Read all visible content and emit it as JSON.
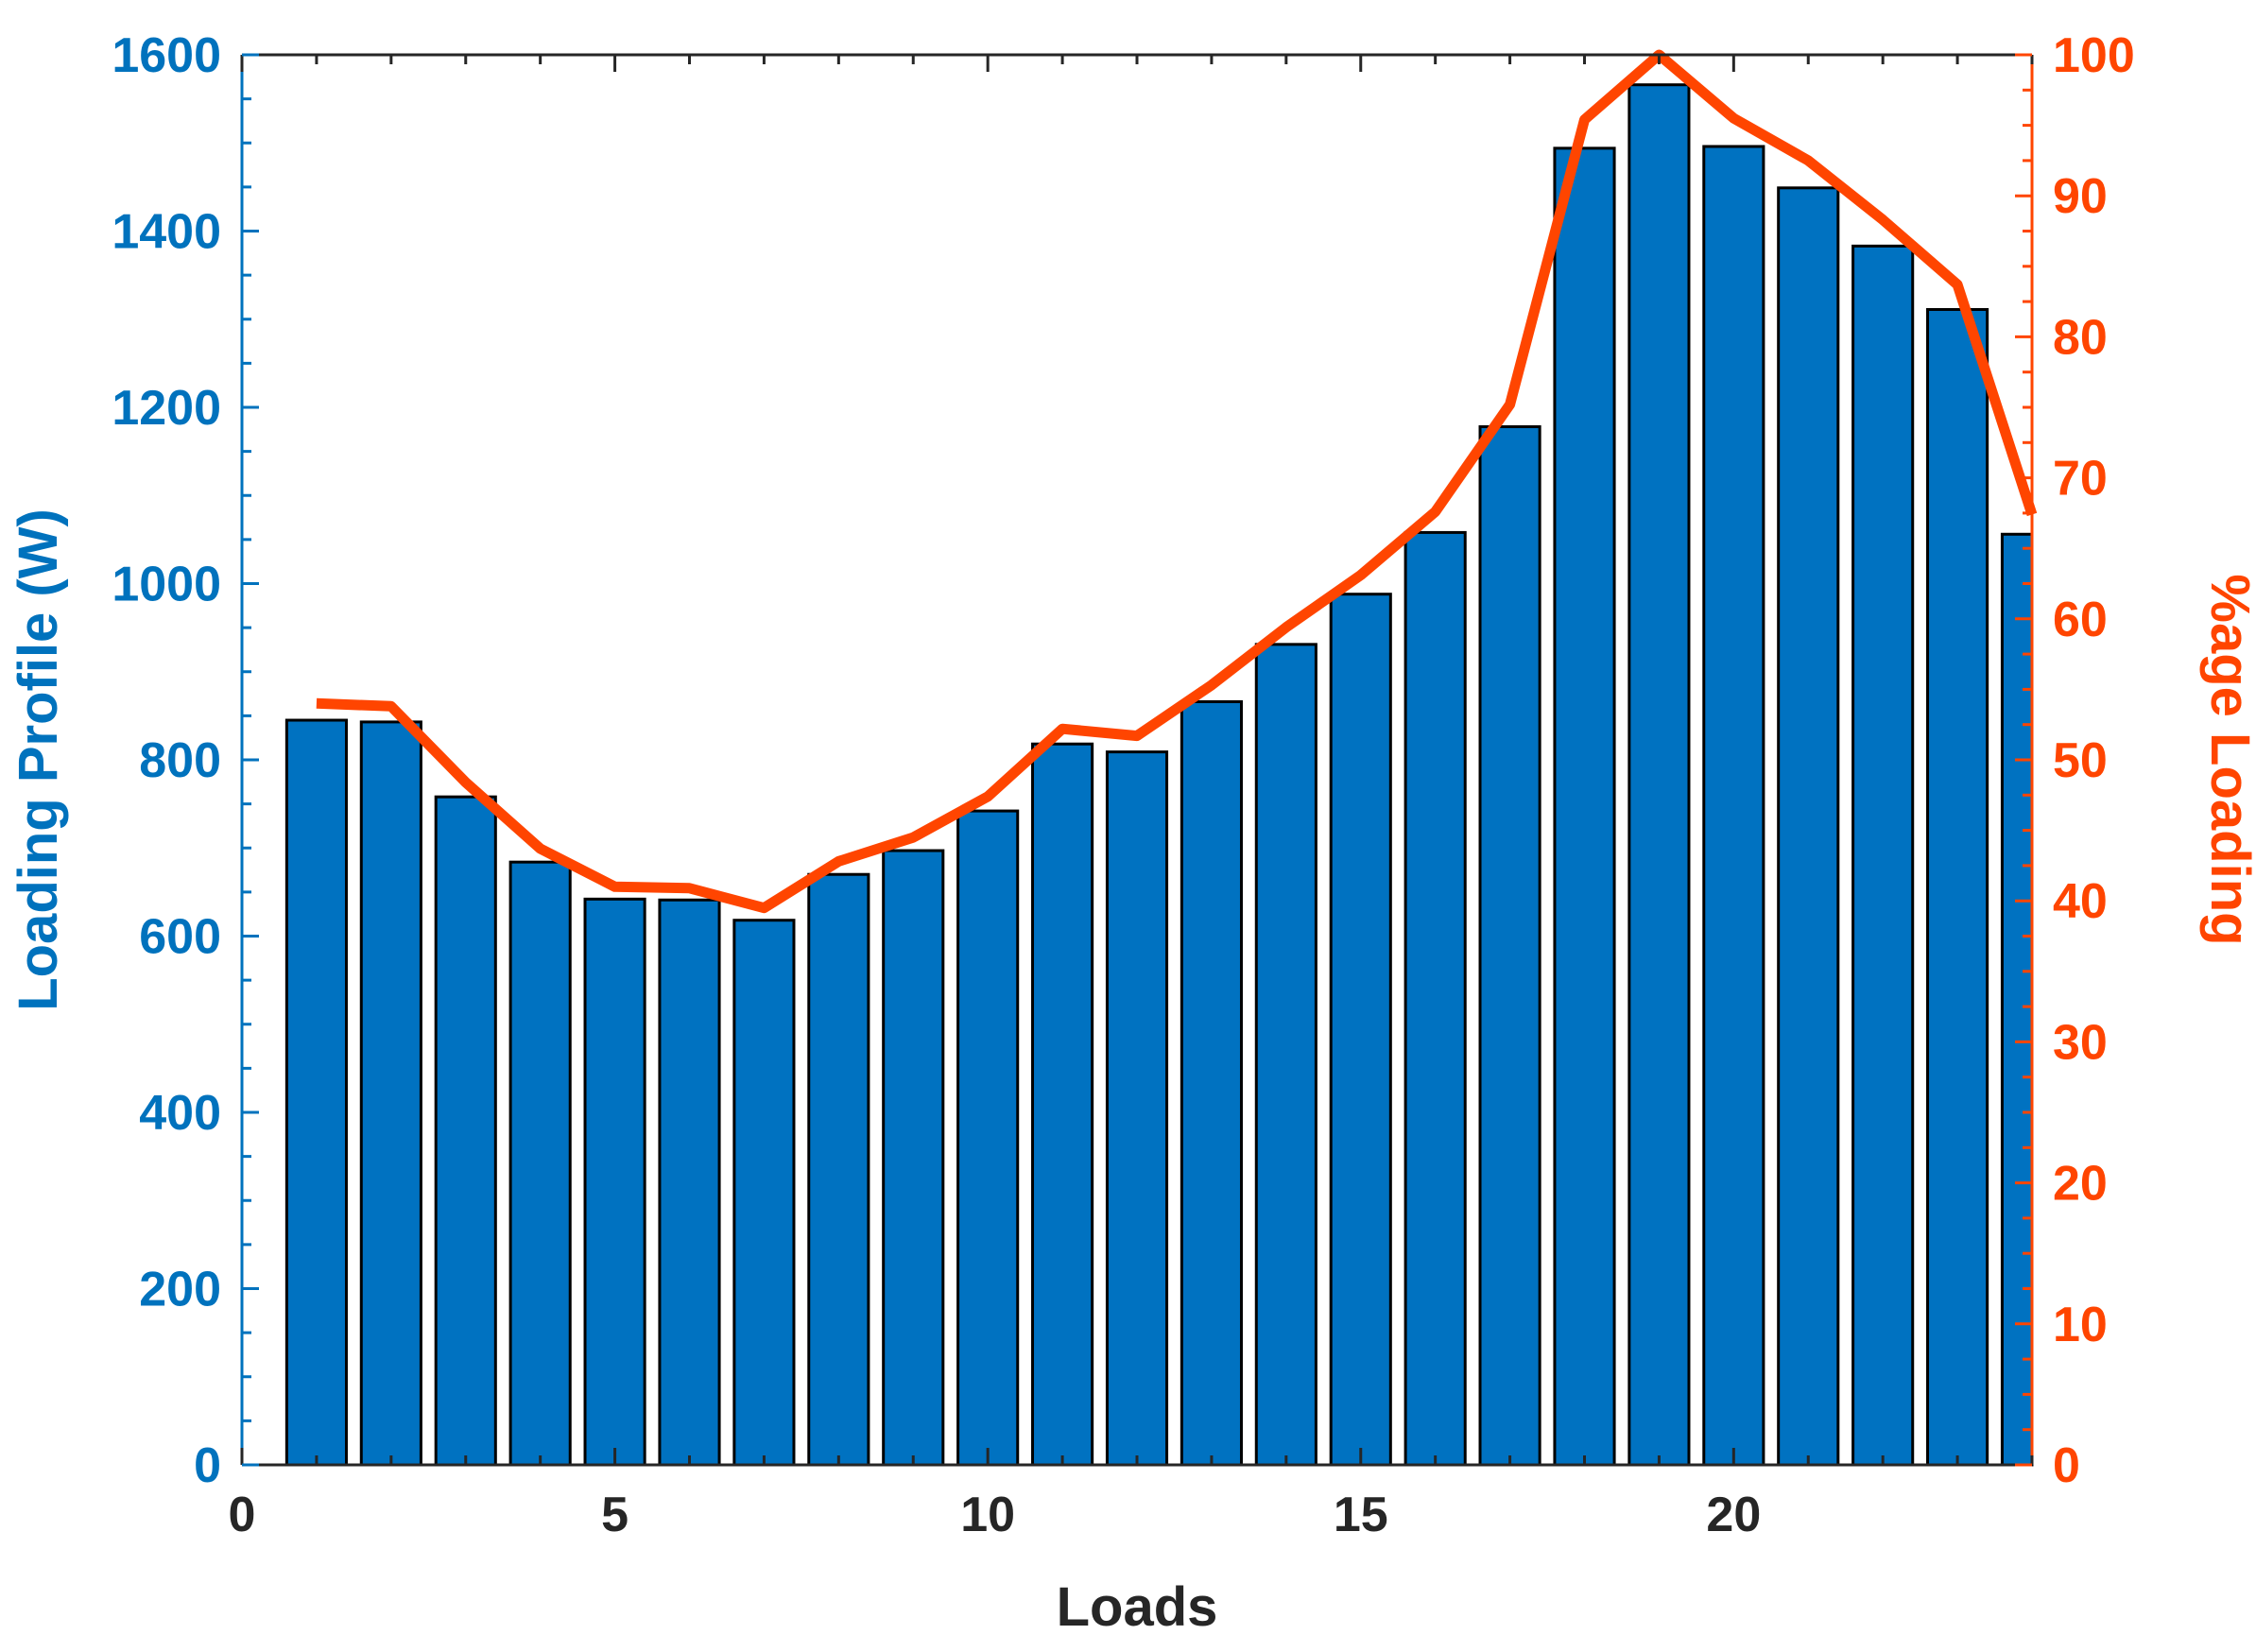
{
  "chart_data": {
    "type": "bar",
    "xlabel": "Loads",
    "ylabel_left": "Loading Profile (W)",
    "ylabel_right": "%age Loading",
    "xlim": [
      0,
      24
    ],
    "ylim_left": [
      0,
      1600
    ],
    "ylim_right": [
      0,
      100
    ],
    "x_ticks": [
      0,
      5,
      10,
      15,
      20
    ],
    "y_left_ticks": [
      0,
      200,
      400,
      600,
      800,
      1000,
      1200,
      1400,
      1600
    ],
    "y_right_ticks": [
      0,
      10,
      20,
      30,
      40,
      50,
      60,
      70,
      80,
      90,
      100
    ],
    "x": [
      1,
      2,
      3,
      4,
      5,
      6,
      7,
      8,
      9,
      10,
      11,
      12,
      13,
      14,
      15,
      16,
      17,
      18,
      19,
      20,
      21,
      22,
      23,
      24
    ],
    "series": [
      {
        "type": "bar",
        "axis": "left",
        "values": [
          845,
          843,
          758,
          684,
          642,
          641,
          618,
          670,
          697,
          742,
          818,
          809,
          866,
          931,
          988,
          1058,
          1178,
          1494,
          1566,
          1496,
          1449,
          1383,
          1311,
          1056
        ]
      },
      {
        "type": "line",
        "axis": "right",
        "values": [
          54.0,
          53.8,
          48.4,
          43.7,
          41.0,
          40.9,
          39.5,
          42.8,
          44.5,
          47.4,
          52.2,
          51.7,
          55.3,
          59.4,
          63.1,
          67.6,
          75.2,
          95.4,
          100.0,
          95.5,
          92.5,
          88.3,
          83.7,
          67.4
        ]
      }
    ],
    "colors": {
      "bar_fill": "#0072C1",
      "bar_stroke": "#000000",
      "line": "#FF4500",
      "left_axis": "#0072BD",
      "right_axis": "#FF4500",
      "x_axis": "#262626"
    },
    "grid": false,
    "legend": "none"
  }
}
